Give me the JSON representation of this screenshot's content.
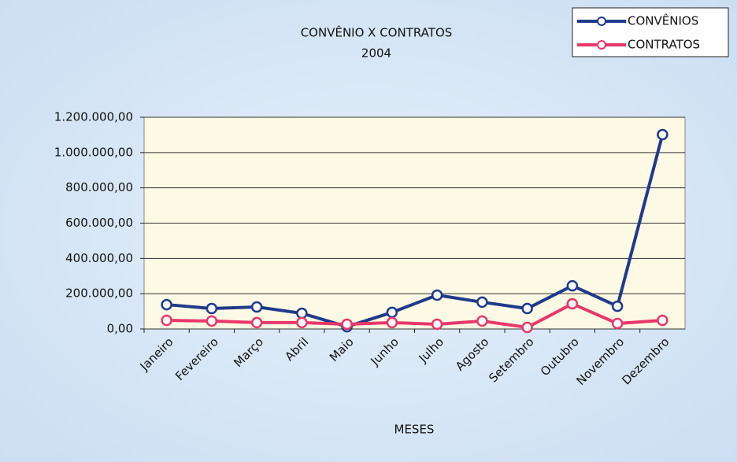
{
  "chart_data": {
    "type": "line",
    "title": "CONVÊNIO  X  CONTRATOS",
    "subtitle": "2004",
    "x_label": "MESES",
    "categories": [
      "Janeiro",
      "Fevereiro",
      "Março",
      "Abril",
      "Maio",
      "Junho",
      "Julho",
      "Agosto",
      "Setembro",
      "Outubro",
      "Novembro",
      "Dezembro"
    ],
    "series": [
      {
        "name": "CONVÊNIOS",
        "color": "#1f3a8a",
        "values": [
          138000,
          116000,
          125000,
          89000,
          13000,
          94000,
          192000,
          152000,
          116000,
          245000,
          129000,
          1102000
        ]
      },
      {
        "name": "CONTRATOS",
        "color": "#e8386a",
        "values": [
          49000,
          45000,
          36000,
          36000,
          27000,
          36000,
          27000,
          45000,
          9000,
          143000,
          31000,
          49000
        ]
      }
    ],
    "ylim": [
      0,
      1200000
    ],
    "yticks": [
      {
        "value": 0,
        "label": "0,00"
      },
      {
        "value": 200000,
        "label": "200.000,00"
      },
      {
        "value": 400000,
        "label": "400.000,00"
      },
      {
        "value": 600000,
        "label": "600.000,00"
      },
      {
        "value": 800000,
        "label": "800.000,00"
      },
      {
        "value": 1000000,
        "label": "1.000.000,00"
      },
      {
        "value": 1200000,
        "label": "1.200.000,00"
      }
    ],
    "grid": true,
    "legend": "top-right"
  }
}
